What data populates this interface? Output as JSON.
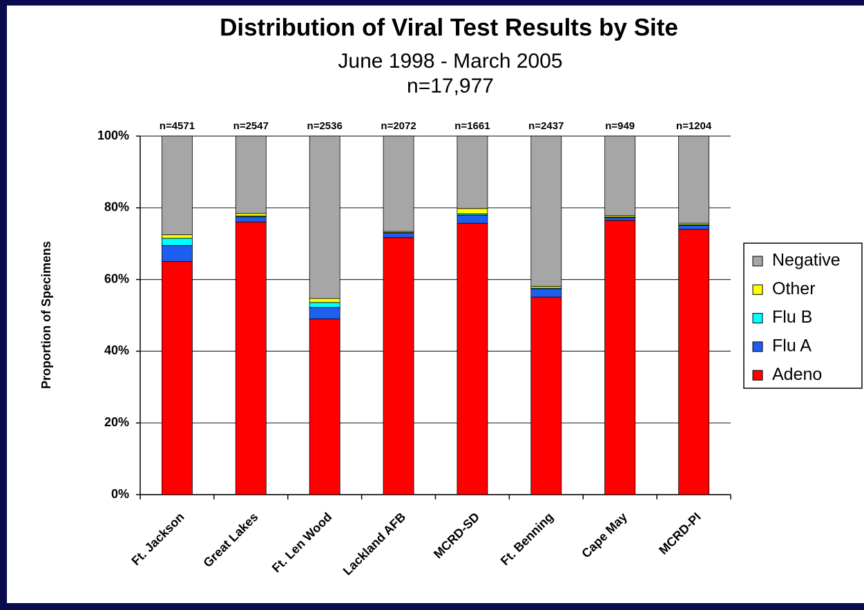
{
  "chart_data": {
    "type": "stacked_bar",
    "title": "Distribution of Viral Test Results by Site",
    "subtitle": [
      "June 1998 - March 2005",
      "n=17,977"
    ],
    "y_label": "Proportion of Specimens",
    "categories": [
      "Ft. Jackson",
      "Great Lakes",
      "Ft. Len Wood",
      "Lackland AFB",
      "MCRD-SD",
      "Ft. Benning",
      "Cape May",
      "MCRD-PI"
    ],
    "bar_labels": [
      "n=4571",
      "n=2547",
      "n=2536",
      "n=2072",
      "n=1661",
      "n=2437",
      "n=949",
      "n=1204"
    ],
    "series": [
      {
        "name": "Adeno",
        "color": "#ff0000",
        "values": [
          65,
          76,
          49,
          71.7,
          75.7,
          55.1,
          76.5,
          74
        ]
      },
      {
        "name": "Flu A",
        "color": "#1f5ff0",
        "values": [
          4.5,
          1.5,
          3.2,
          1.3,
          2.3,
          2.3,
          0.8,
          1.1
        ]
      },
      {
        "name": "Flu B",
        "color": "#00ffff",
        "values": [
          2,
          0.2,
          1.4,
          0.1,
          0.3,
          0.2,
          0.1,
          0.2
        ]
      },
      {
        "name": "Other",
        "color": "#ffff00",
        "values": [
          1,
          0.7,
          1.1,
          0.3,
          1.5,
          0.5,
          0.4,
          0.4
        ]
      },
      {
        "name": "Negative",
        "color": "#a6a6a6",
        "values": [
          27.5,
          21.6,
          45.3,
          26.6,
          20.2,
          41.9,
          22.2,
          24.3
        ]
      }
    ],
    "ylim": [
      0,
      100
    ],
    "yticks": [
      {
        "value": 0,
        "label": "0%"
      },
      {
        "value": 20,
        "label": "20%"
      },
      {
        "value": 40,
        "label": "40%"
      },
      {
        "value": 60,
        "label": "60%"
      },
      {
        "value": 80,
        "label": "80%"
      },
      {
        "value": 100,
        "label": "100%"
      }
    ],
    "grid": true,
    "legend": "right"
  }
}
